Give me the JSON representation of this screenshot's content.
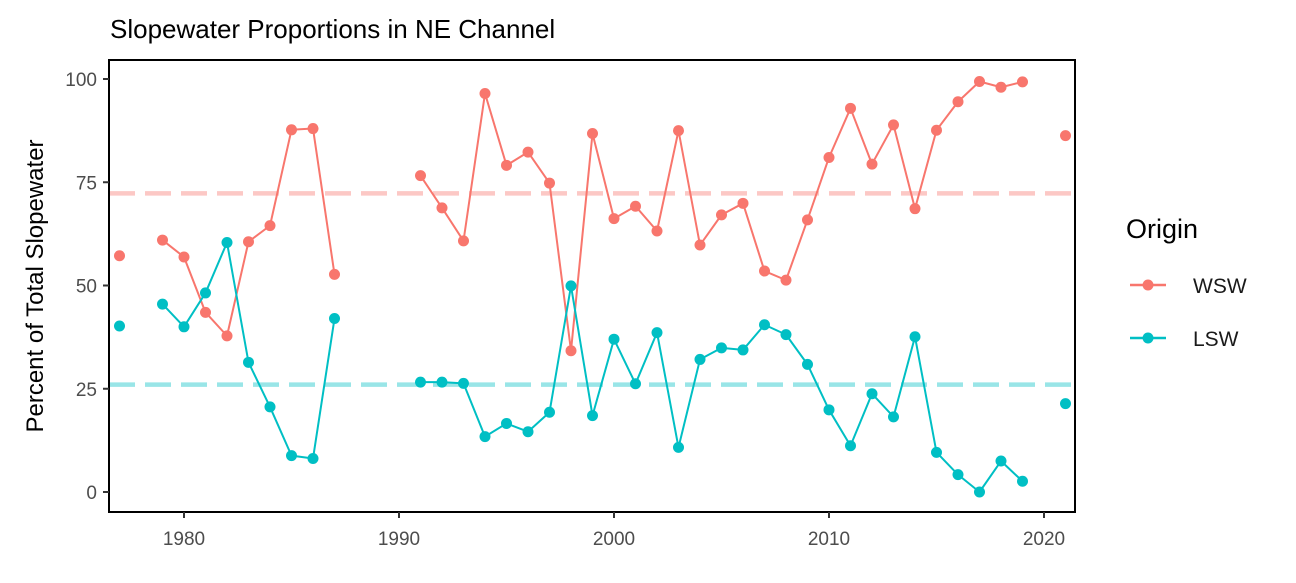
{
  "chart_data": {
    "type": "line",
    "title": "Slopewater Proportions in NE Channel",
    "xlabel": "",
    "ylabel": "Percent of Total Slopewater",
    "xlim": [
      1977,
      2021
    ],
    "ylim": [
      0,
      100
    ],
    "x_ticks": [
      1980,
      1990,
      2000,
      2010,
      2020
    ],
    "y_ticks": [
      0,
      25,
      50,
      75,
      100
    ],
    "grid": false,
    "legend": {
      "title": "Origin",
      "position": "right"
    },
    "x": [
      1977,
      1979,
      1980,
      1981,
      1982,
      1983,
      1984,
      1985,
      1986,
      1987,
      1991,
      1992,
      1993,
      1994,
      1995,
      1996,
      1997,
      1998,
      1999,
      2000,
      2001,
      2002,
      2003,
      2004,
      2005,
      2006,
      2007,
      2008,
      2009,
      2010,
      2011,
      2012,
      2013,
      2014,
      2015,
      2016,
      2017,
      2018,
      2019,
      2021
    ],
    "series": [
      {
        "name": "WSW",
        "color": "#F8766D",
        "values": [
          57.2,
          61.0,
          56.9,
          43.5,
          37.8,
          60.6,
          64.5,
          87.7,
          88.0,
          52.7,
          76.6,
          68.8,
          60.8,
          96.5,
          79.1,
          82.3,
          74.8,
          34.2,
          86.8,
          66.2,
          69.2,
          63.2,
          87.5,
          59.8,
          67.1,
          69.9,
          53.5,
          51.3,
          65.9,
          81.0,
          92.9,
          79.4,
          88.9,
          68.6,
          87.6,
          94.5,
          99.4,
          98.0,
          99.3,
          86.3
        ]
      },
      {
        "name": "LSW",
        "color": "#00BFC4",
        "values": [
          40.2,
          45.5,
          40.0,
          48.2,
          60.4,
          31.4,
          20.6,
          8.8,
          8.1,
          42.0,
          26.6,
          26.6,
          26.3,
          13.4,
          16.6,
          14.6,
          19.3,
          49.9,
          18.5,
          37.0,
          26.2,
          38.6,
          10.8,
          32.1,
          34.9,
          34.4,
          40.5,
          38.1,
          30.9,
          19.9,
          11.2,
          23.8,
          18.2,
          37.6,
          9.6,
          4.2,
          0.0,
          7.5,
          2.6,
          21.4
        ]
      }
    ],
    "reference_lines": [
      {
        "series": "WSW",
        "y": 72.3,
        "color": "#F8766D",
        "style": "dashed"
      },
      {
        "series": "LSW",
        "y": 26.0,
        "color": "#00BFC4",
        "style": "dashed"
      }
    ]
  }
}
